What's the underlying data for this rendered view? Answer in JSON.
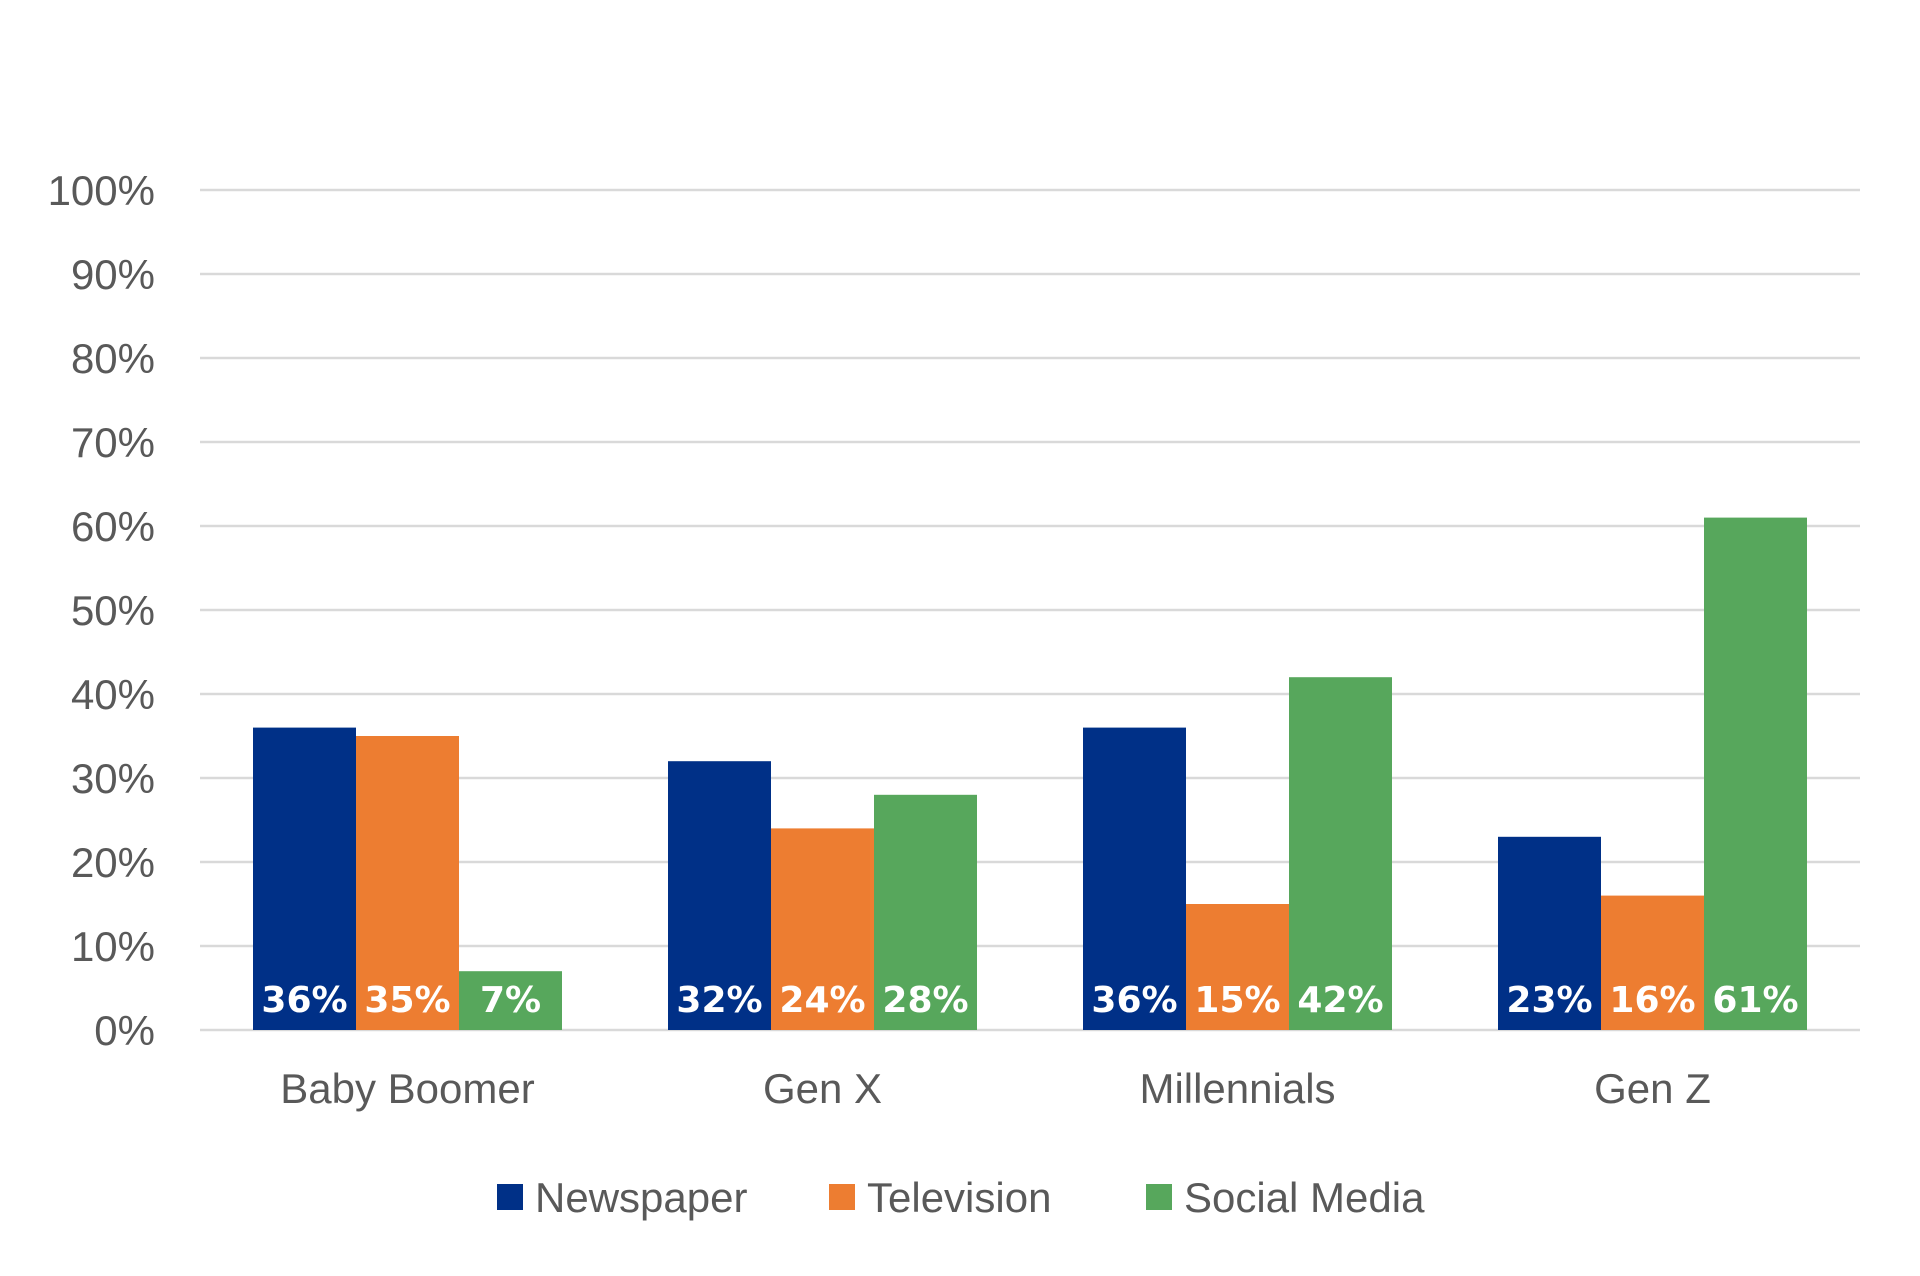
{
  "chart_data": {
    "type": "bar",
    "categories": [
      "Baby Boomer",
      "Gen X",
      "Millennials",
      "Gen Z"
    ],
    "series": [
      {
        "name": "Newspaper",
        "color": "#003087",
        "values": [
          36,
          32,
          36,
          23
        ],
        "labels": [
          "36%",
          "32%",
          "36%",
          "23%"
        ]
      },
      {
        "name": "Television",
        "color": "#ED7D31",
        "values": [
          35,
          24,
          15,
          16
        ],
        "labels": [
          "35%",
          "24%",
          "15%",
          "16%"
        ]
      },
      {
        "name": "Social Media",
        "color": "#57A75C",
        "values": [
          7,
          28,
          42,
          61
        ],
        "labels": [
          "7%",
          "28%",
          "42%",
          "61%"
        ]
      }
    ],
    "ylim": [
      0,
      100
    ],
    "yticks": [
      0,
      10,
      20,
      30,
      40,
      50,
      60,
      70,
      80,
      90,
      100
    ],
    "ytick_labels": [
      "0%",
      "10%",
      "20%",
      "30%",
      "40%",
      "50%",
      "60%",
      "70%",
      "80%",
      "90%",
      "100%"
    ],
    "title": "",
    "xlabel": "",
    "ylabel": "",
    "grid": true,
    "legend": "bottom-center"
  }
}
